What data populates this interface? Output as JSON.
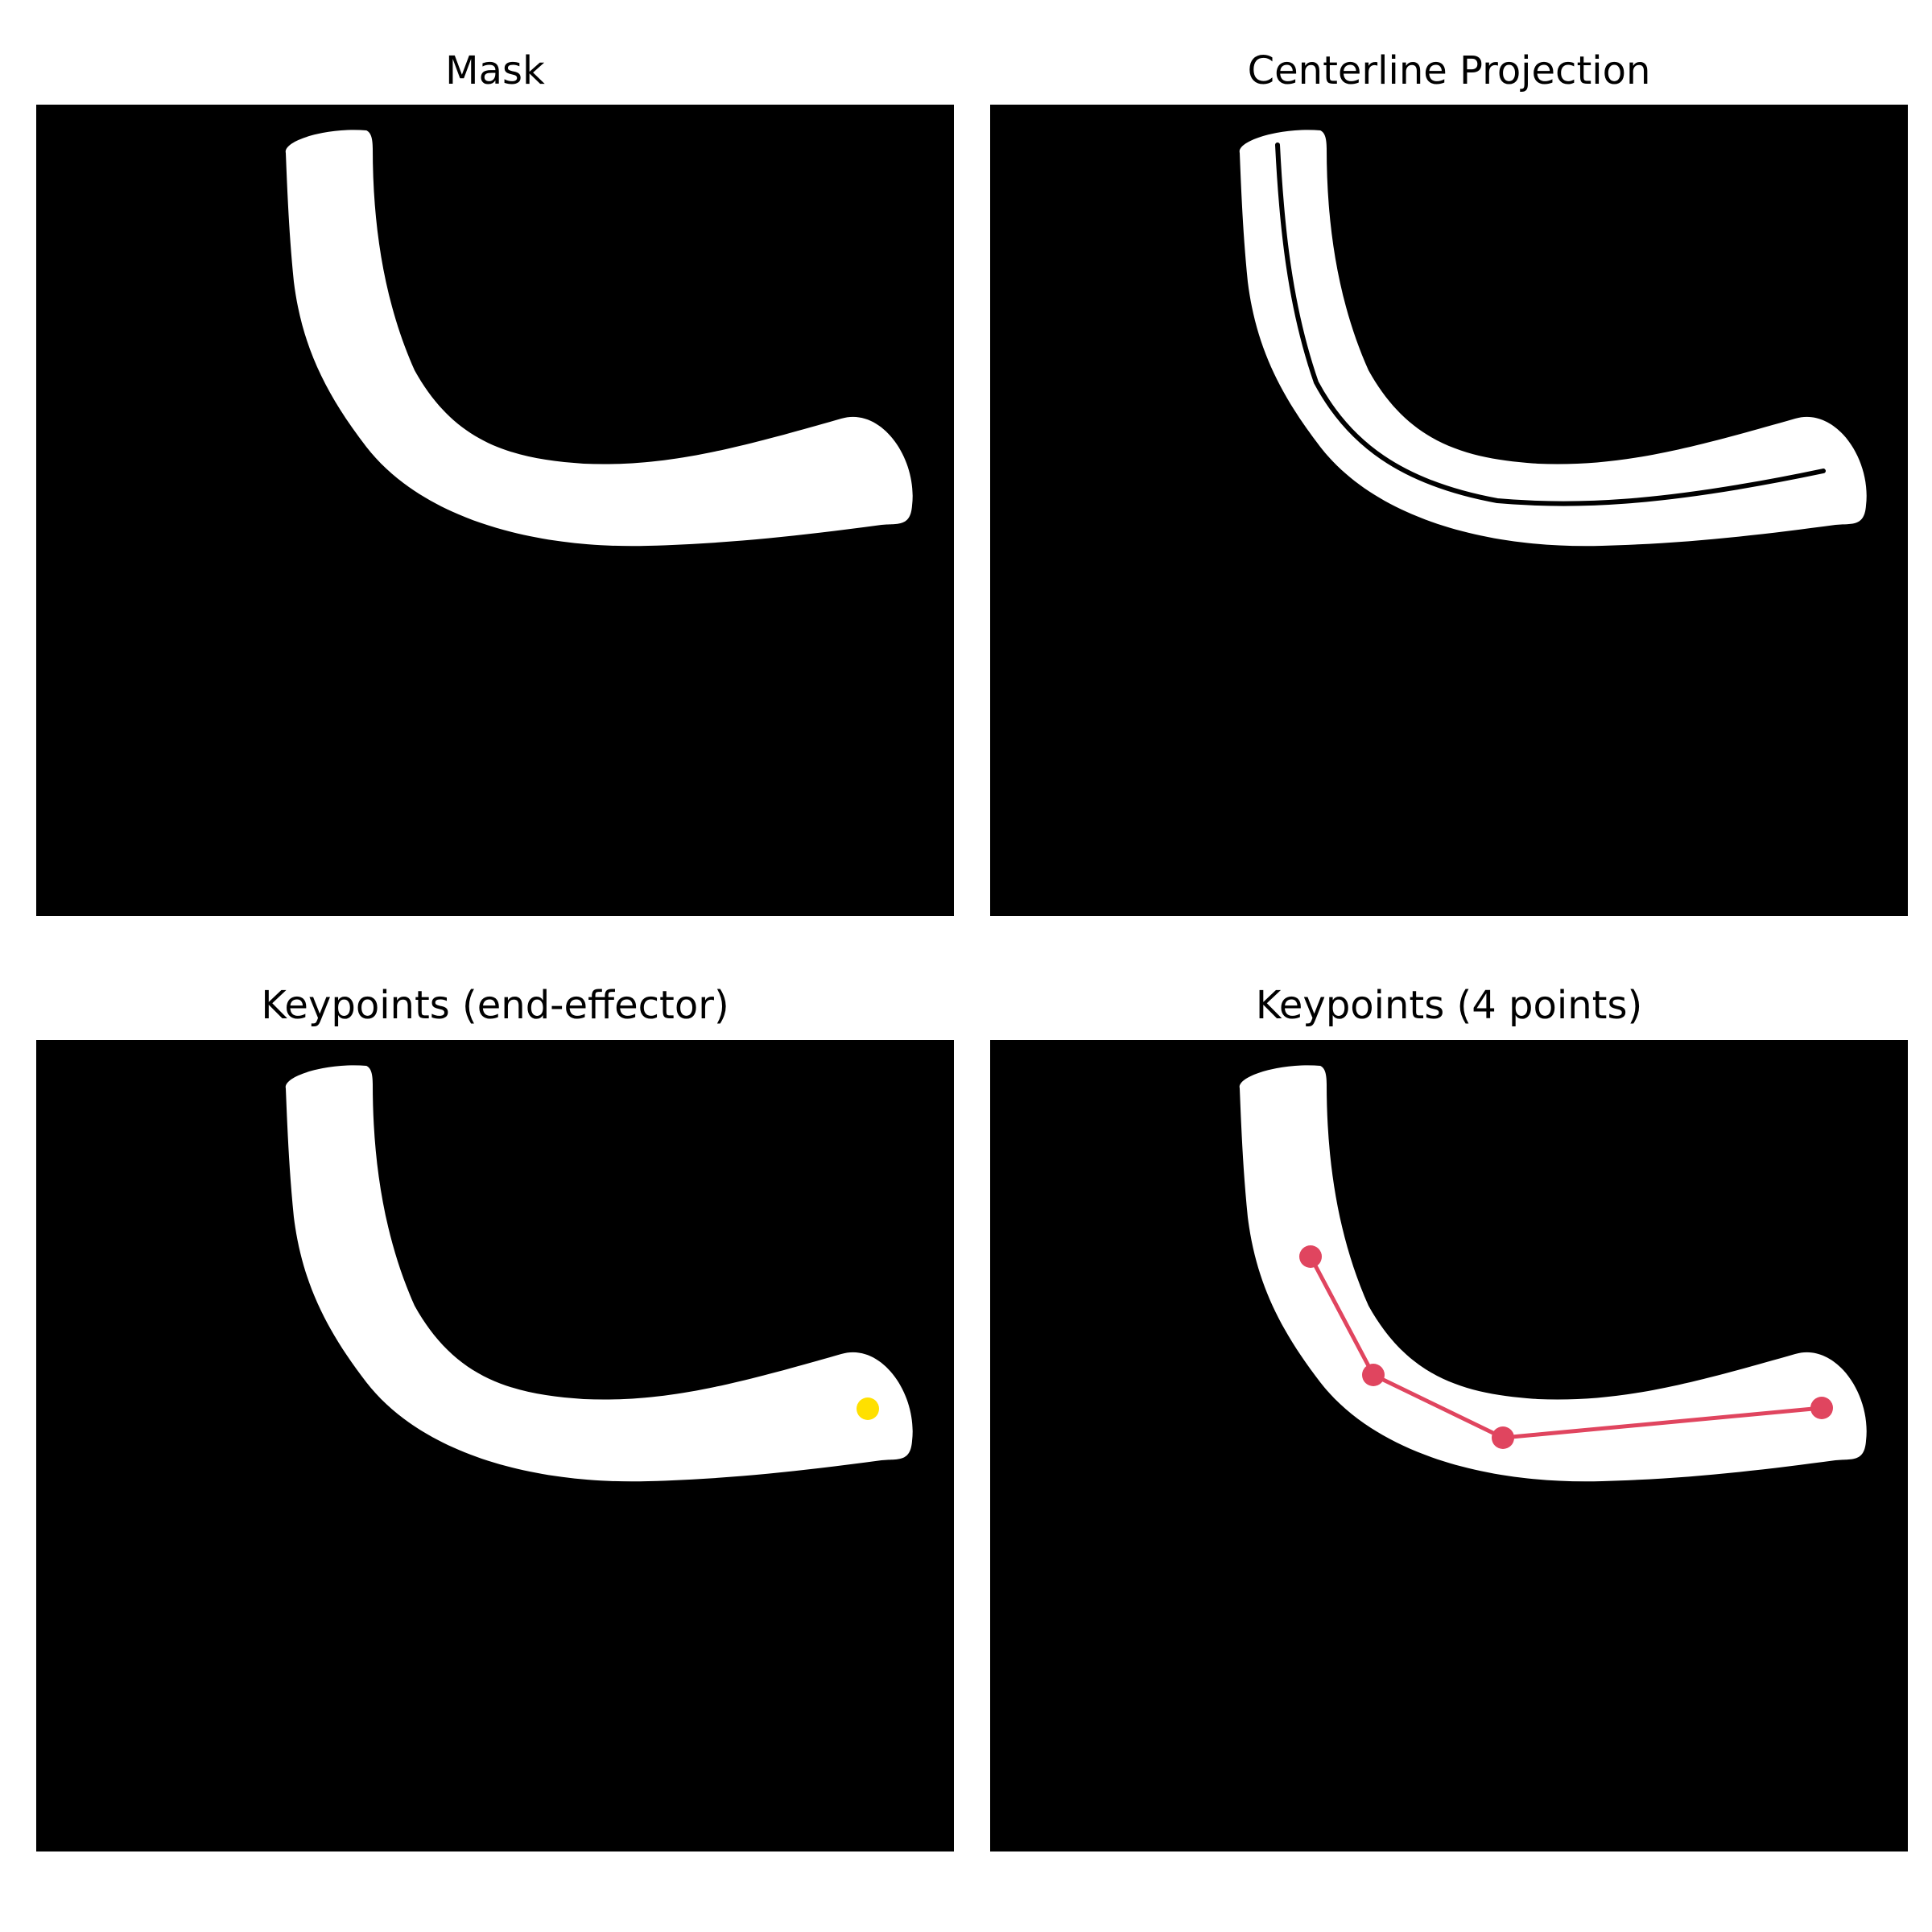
{
  "panels": {
    "mask": {
      "title": "Mask"
    },
    "centerline": {
      "title": "Centerline Projection"
    },
    "end_effector": {
      "title": "Keypoints (end-effector)"
    },
    "four_points": {
      "title": "Keypoints (4 points)"
    }
  },
  "colors": {
    "background": "#000000",
    "mask": "#ffffff",
    "centerline": "#000000",
    "end_effector_point": "#ffe000",
    "keypoint": "#e0455f",
    "keypoint_line": "#e0455f"
  },
  "keypoints": {
    "count": 4,
    "end_effector_count": 1
  }
}
